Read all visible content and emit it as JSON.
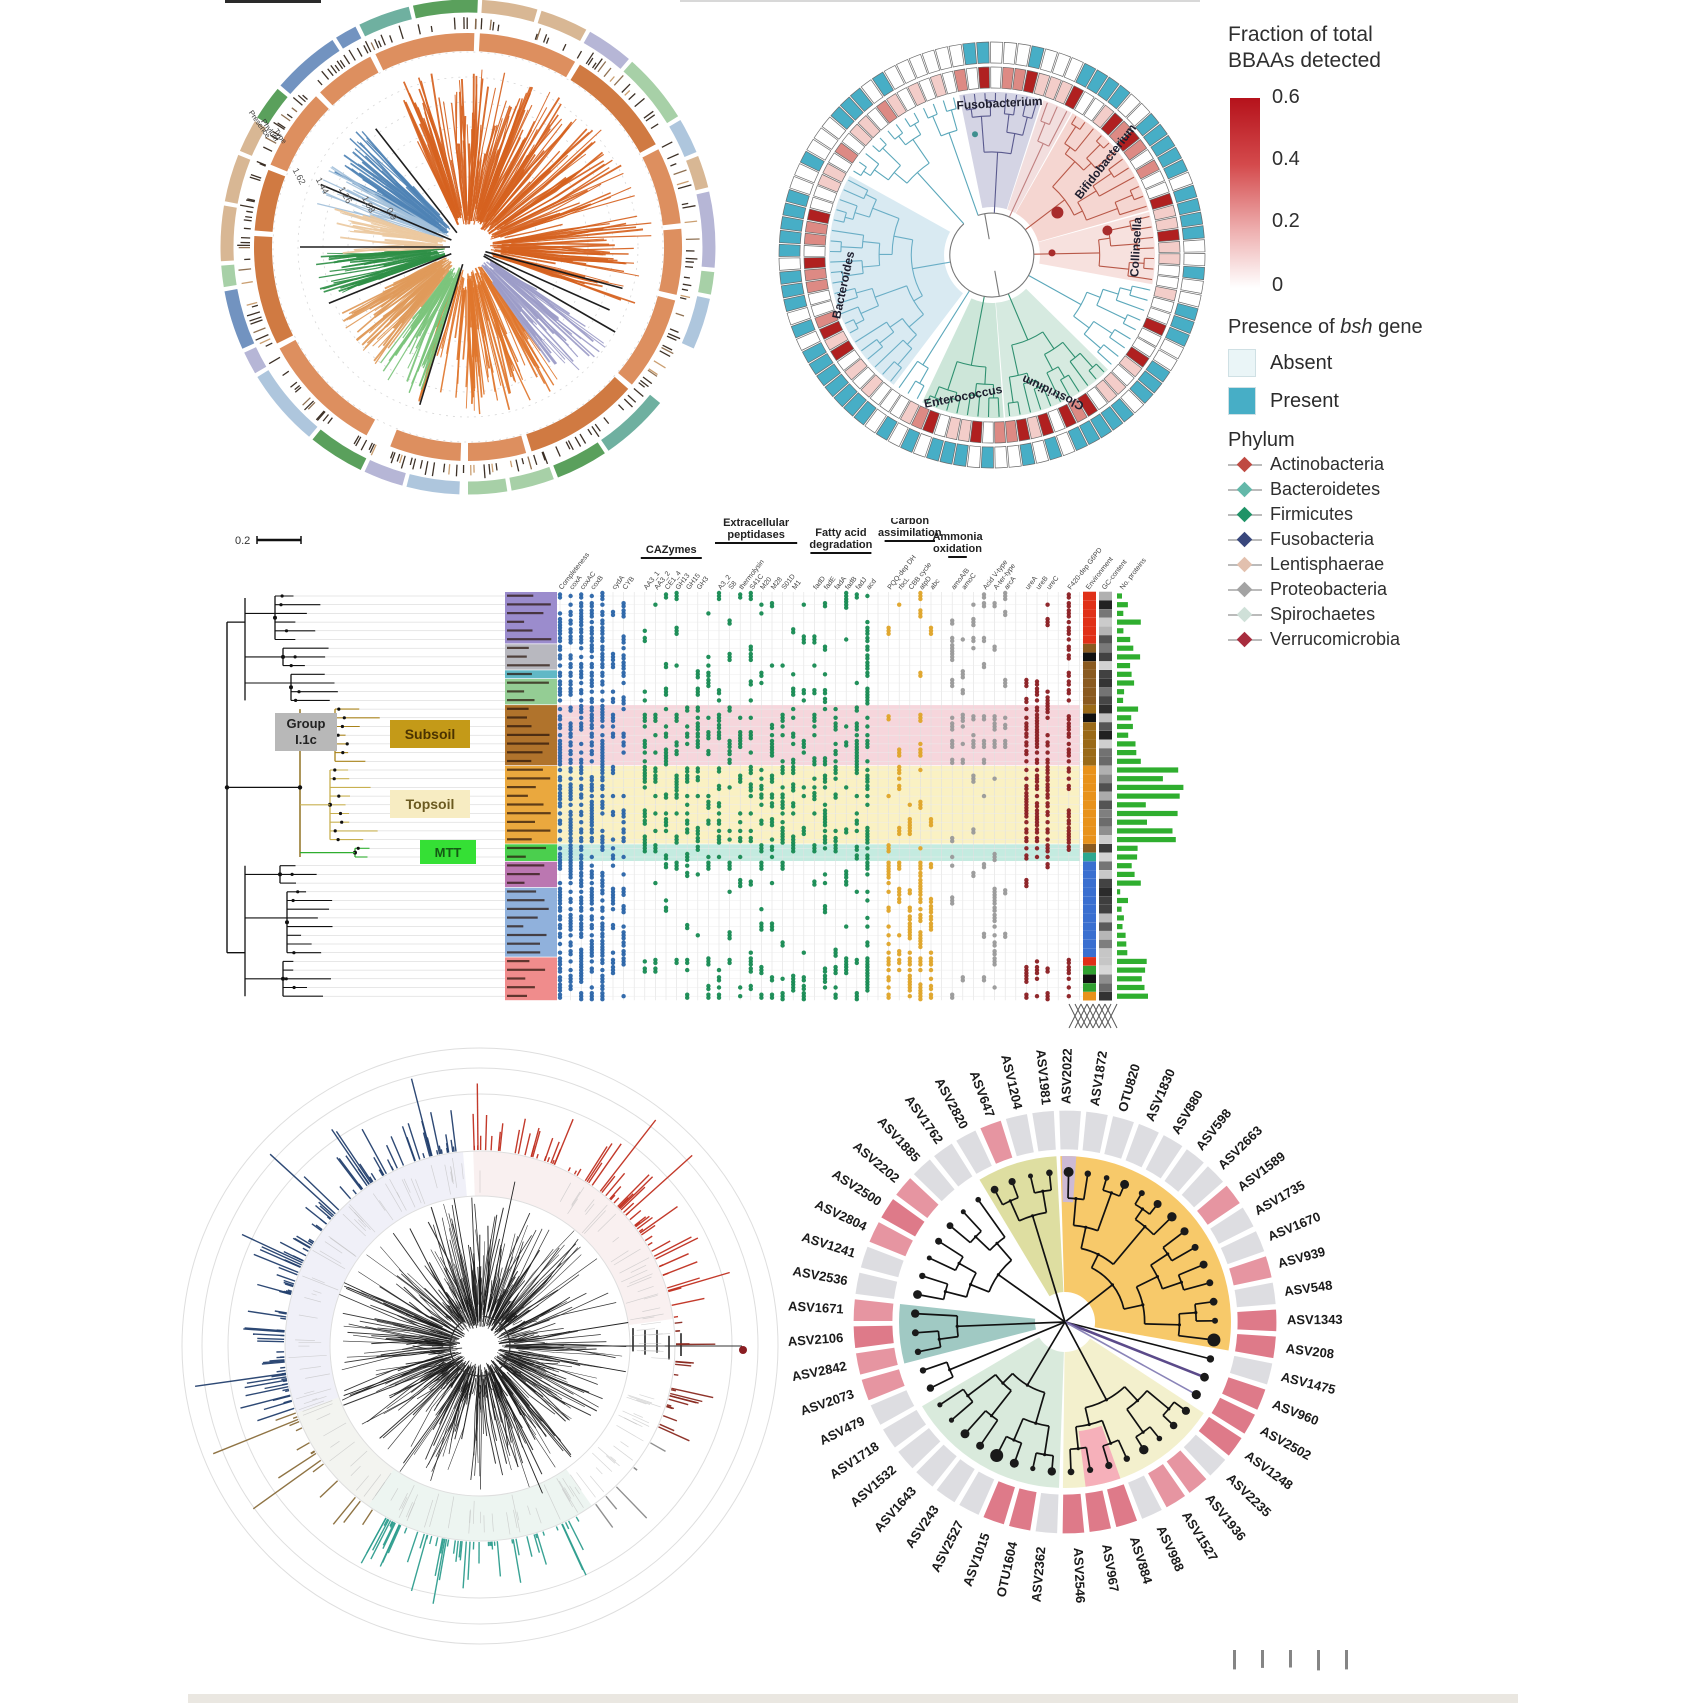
{
  "page": {
    "background": "#ffffff"
  },
  "panel_a": {
    "name": "circular-phylogeny-with-annotation-rings",
    "axis_ticks": [
      "1.62",
      "1.44",
      "1.26",
      "1.08",
      "0.9"
    ],
    "ring_labels": [
      "Presence",
      "Phylum",
      "Type"
    ]
  },
  "panel_b": {
    "name": "bsh-gene-circular-dendrogram",
    "genus_labels": [
      {
        "text": "Fusobacterium",
        "angle": 87
      },
      {
        "text": "Bifidobacterium",
        "angle": 38
      },
      {
        "text": "Collinsella",
        "angle": 3
      },
      {
        "text": "Clostridium",
        "angle": -65
      },
      {
        "text": "Enterococcus",
        "angle": -101
      },
      {
        "text": "Bacteroides",
        "angle": -168
      }
    ]
  },
  "legend": {
    "gradient_title_line1": "Fraction of total",
    "gradient_title_line2": "BBAAs detected",
    "gradient_ticks": [
      "0.6",
      "0.4",
      "0.2",
      "0"
    ],
    "bsh_title_pre": "Presence of ",
    "bsh_title_italic": "bsh",
    "bsh_title_post": " gene",
    "bsh_items": [
      {
        "label": "Absent",
        "color": "#eaf5f7"
      },
      {
        "label": "Present",
        "color": "#47aec6"
      }
    ],
    "phylum_title": "Phylum",
    "phylum_items": [
      {
        "label": "Actinobacteria",
        "color": "#bf4a42"
      },
      {
        "label": "Bacteroidetes",
        "color": "#63b8a9"
      },
      {
        "label": "Firmicutes",
        "color": "#1f9367"
      },
      {
        "label": "Fusobacteria",
        "color": "#39477c"
      },
      {
        "label": "Lentisphaerae",
        "color": "#e2c0ae"
      },
      {
        "label": "Proteobacteria",
        "color": "#a3a3a3"
      },
      {
        "label": "Spirochaetes",
        "color": "#cfe0d8"
      },
      {
        "label": "Verrucomicrobia",
        "color": "#a82c3e"
      }
    ]
  },
  "panel_c": {
    "scale_bar": "0.2",
    "group_box": "Group I.1c",
    "clade_boxes": [
      {
        "label": "Subsoil",
        "bg": "#c49а18",
        "fg": "#5a3c00"
      },
      {
        "label": "Topsoil",
        "bg": "#f7ecc2",
        "fg": "#6b5a20"
      },
      {
        "label": "MTT",
        "bg": "#35e035",
        "fg": "#145a14"
      }
    ],
    "column_groups": [
      {
        "label1": "CAZymes",
        "label2": ""
      },
      {
        "label1": "Extracellular",
        "label2": "peptidases"
      },
      {
        "label1": "Fatty acid",
        "label2": "degradation"
      },
      {
        "label1": "Carbon",
        "label2": "assimilation"
      },
      {
        "label1": "Ammonia",
        "label2": "oxidation"
      }
    ],
    "column_labels": [
      {
        "col": 0,
        "text": "Completeness"
      },
      {
        "col": 1,
        "text": "coxA"
      },
      {
        "col": 2,
        "text": "coxAC"
      },
      {
        "col": 3,
        "text": "coxB"
      },
      {
        "col": 5,
        "text": "cydA"
      },
      {
        "col": 6,
        "text": "CYB"
      },
      {
        "col": 8,
        "text": "AA3_1"
      },
      {
        "col": 9,
        "text": "AA3_2"
      },
      {
        "col": 10,
        "text": "CE1_4"
      },
      {
        "col": 11,
        "text": "GH13"
      },
      {
        "col": 12,
        "text": "GH15"
      },
      {
        "col": 13,
        "text": "GH3"
      },
      {
        "col": 15,
        "text": "A3_2"
      },
      {
        "col": 16,
        "text": "S8"
      },
      {
        "col": 17,
        "text": "thermolysin"
      },
      {
        "col": 18,
        "text": "S41C"
      },
      {
        "col": 19,
        "text": "M20"
      },
      {
        "col": 20,
        "text": "M28"
      },
      {
        "col": 21,
        "text": "S01D"
      },
      {
        "col": 22,
        "text": "M1"
      },
      {
        "col": 24,
        "text": "fadD"
      },
      {
        "col": 25,
        "text": "fadE"
      },
      {
        "col": 26,
        "text": "fadA"
      },
      {
        "col": 27,
        "text": "fadB"
      },
      {
        "col": 28,
        "text": "fadJ"
      },
      {
        "col": 29,
        "text": "acd"
      },
      {
        "col": 31,
        "text": "PQQ-dep DH"
      },
      {
        "col": 32,
        "text": "rbcL"
      },
      {
        "col": 33,
        "text": "CBB cycle"
      },
      {
        "col": 34,
        "text": "atpD"
      },
      {
        "col": 35,
        "text": "abc"
      },
      {
        "col": 37,
        "text": "amoA/B"
      },
      {
        "col": 38,
        "text": "amoC"
      },
      {
        "col": 40,
        "text": "Acid V-type"
      },
      {
        "col": 41,
        "text": "A-ter-type"
      },
      {
        "col": 42,
        "text": "arcA"
      },
      {
        "col": 44,
        "text": "ureA"
      },
      {
        "col": 45,
        "text": "ureB"
      },
      {
        "col": 46,
        "text": "ureC"
      }
    ],
    "right_labels": [
      "F420-dep G6PD",
      "Environment",
      "GC-content",
      "No. proteins"
    ]
  },
  "panel_d": {
    "name": "dense-radial-tree-with-abundance-bars"
  },
  "panel_e": {
    "name": "asv-circular-dendrogram",
    "labels": [
      "ASV2820",
      "ASV647",
      "ASV1204",
      "ASV1981",
      "ASV2022",
      "ASV1872",
      "OTU820",
      "ASV1830",
      "ASV880",
      "ASV598",
      "ASV2663",
      "ASV1589",
      "ASV1735",
      "ASV1670",
      "ASV939",
      "ASV548",
      "ASV1343",
      "ASV208",
      "ASV1475",
      "ASV960",
      "ASV2502",
      "ASV1248",
      "ASV2235",
      "ASV1936",
      "ASV1527",
      "ASV988",
      "ASV884",
      "ASV967",
      "ASV2546",
      "ASV2362",
      "OTU1604",
      "ASV1015",
      "ASV2527",
      "ASV243",
      "ASV1643",
      "ASV1532",
      "ASV1718",
      "ASV479",
      "ASV2073",
      "ASV2842",
      "ASV2106",
      "ASV1671",
      "ASV2536",
      "ASV1241",
      "ASV2804",
      "ASV2500",
      "ASV2202",
      "ASV1885",
      "ASV1762"
    ],
    "cell_pattern": [
      "g",
      "p",
      "g",
      "g",
      "g",
      "g",
      "g",
      "g",
      "g",
      "g",
      "g",
      "p",
      "g",
      "g",
      "p",
      "g",
      "p",
      "p",
      "g",
      "p",
      "p",
      "p",
      "g",
      "p",
      "p",
      "g",
      "p",
      "p",
      "p",
      "g",
      "p",
      "p",
      "g",
      "g",
      "g",
      "g",
      "g",
      "g",
      "p",
      "p",
      "p",
      "p",
      "g",
      "g",
      "p",
      "p",
      "p",
      "g",
      "g"
    ]
  }
}
